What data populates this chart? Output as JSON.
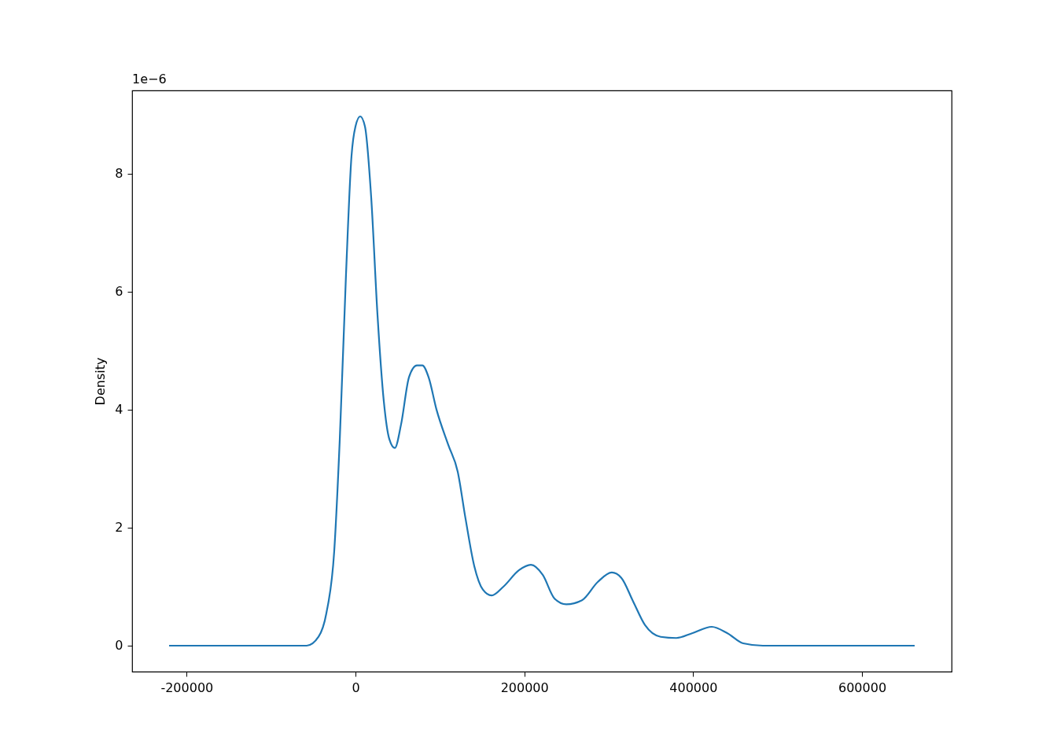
{
  "chart_data": {
    "type": "line",
    "ylabel": "Density",
    "annotations": [
      "1e−6"
    ],
    "x": [
      -220800,
      -57800,
      -43800,
      -34500,
      -25200,
      -18600,
      -11200,
      -4700,
      0,
      5600,
      11200,
      18600,
      26100,
      33500,
      40100,
      46600,
      54000,
      63400,
      72700,
      79200,
      86600,
      96000,
      110000,
      121100,
      130400,
      140700,
      150900,
      161200,
      175200,
      193800,
      207800,
      221800,
      235700,
      249700,
      268300,
      287000,
      303700,
      314900,
      328900,
      342900,
      361500,
      380100,
      398700,
      422100,
      440700,
      459300,
      482600,
      662400
    ],
    "series": [
      {
        "color": "#1f77b4",
        "values": [
          0,
          0,
          0.15,
          0.55,
          1.6,
          3.5,
          6.3,
          8.3,
          8.8,
          8.97,
          8.8,
          7.6,
          5.6,
          4.15,
          3.5,
          3.35,
          3.75,
          4.55,
          4.75,
          4.75,
          4.55,
          4.0,
          3.4,
          2.95,
          2.15,
          1.35,
          0.95,
          0.85,
          1.0,
          1.28,
          1.37,
          1.2,
          0.8,
          0.7,
          0.77,
          1.08,
          1.24,
          1.15,
          0.75,
          0.35,
          0.15,
          0.13,
          0.21,
          0.32,
          0.21,
          0.04,
          0,
          0
        ]
      }
    ],
    "xlim": [
      -264600,
      706200
    ],
    "ylim": [
      -0.44,
      9.41
    ],
    "xticks": [
      -200000,
      0,
      200000,
      400000,
      600000
    ],
    "yticks": [
      0,
      2,
      4,
      6,
      8
    ],
    "grid": false,
    "marker": "none",
    "line_style": "solid"
  }
}
